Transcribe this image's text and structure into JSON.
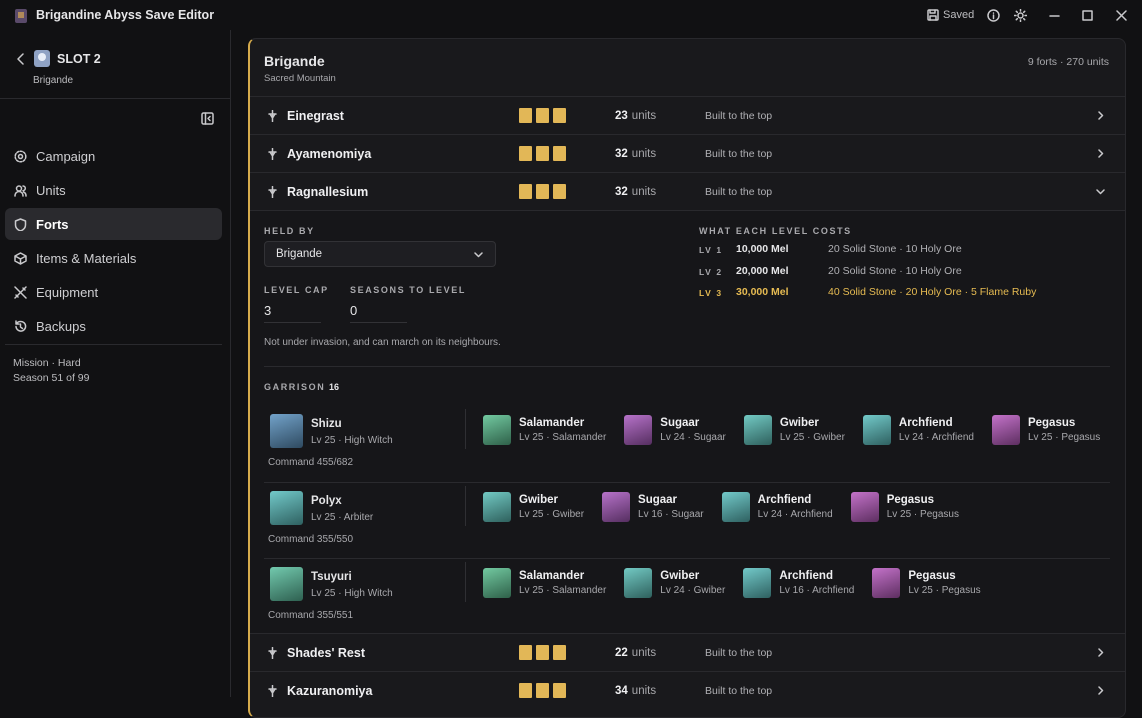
{
  "app": {
    "title": "Brigandine Abyss Save Editor",
    "save_status": "Saved"
  },
  "sidebar": {
    "slot": "SLOT 2",
    "ruler": "Brigande",
    "nav": [
      "Campaign",
      "Units",
      "Forts",
      "Items & Materials",
      "Equipment",
      "Backups"
    ],
    "footer": [
      "Mission · Hard",
      "Season 51 of 99"
    ]
  },
  "nation": {
    "name": "Brigande",
    "location": "Sacred Mountain",
    "summary": "9 forts · 270 units"
  },
  "forts": [
    {
      "name": "Einegrast",
      "level": 3,
      "units": 23,
      "units_label": "units",
      "status": "Built to the top"
    },
    {
      "name": "Ayamenomiya",
      "level": 3,
      "units": 32,
      "units_label": "units",
      "status": "Built to the top"
    },
    {
      "name": "Ragnallesium",
      "level": 3,
      "units": 32,
      "units_label": "units",
      "status": "Built to the top",
      "details": {
        "held_by_label": "HELD BY",
        "held_by": "Brigande",
        "level_cap_label": "LEVEL CAP",
        "level_cap": 3,
        "seasons_label": "SEASONS TO LEVEL",
        "seasons": 0,
        "note": "Not under invasion, and can march on its neighbours.",
        "costs_label": "WHAT EACH LEVEL COSTS",
        "costs": [
          {
            "level": "LV 1",
            "mel": "10,000 Mel",
            "materials": "20 Solid Stone · 10 Holy Ore"
          },
          {
            "level": "LV 2",
            "mel": "20,000 Mel",
            "materials": "20 Solid Stone · 10 Holy Ore"
          },
          {
            "level": "LV 3",
            "mel": "30,000 Mel",
            "materials": "40 Solid Stone · 20 Holy Ore · 5 Flame Ruby"
          }
        ],
        "garrison_label": "GARRISON",
        "garrison_count": 16,
        "groups": [
          {
            "leader": {
              "name": "Shizu",
              "info": "Lv 25 · High Witch"
            },
            "command": "Command 455/682",
            "monsters": [
              {
                "name": "Salamander",
                "info": "Lv 25 · Salamander"
              },
              {
                "name": "Sugaar",
                "info": "Lv 24 · Sugaar"
              },
              {
                "name": "Gwiber",
                "info": "Lv 25 · Gwiber"
              },
              {
                "name": "Archfiend",
                "info": "Lv 24 · Archfiend"
              },
              {
                "name": "Pegasus",
                "info": "Lv 25 · Pegasus"
              }
            ]
          },
          {
            "leader": {
              "name": "Polyx",
              "info": "Lv 25 · Arbiter"
            },
            "command": "Command 355/550",
            "monsters": [
              {
                "name": "Gwiber",
                "info": "Lv 25 · Gwiber"
              },
              {
                "name": "Sugaar",
                "info": "Lv 16 · Sugaar"
              },
              {
                "name": "Archfiend",
                "info": "Lv 24 · Archfiend"
              },
              {
                "name": "Pegasus",
                "info": "Lv 25 · Pegasus"
              }
            ]
          },
          {
            "leader": {
              "name": "Tsuyuri",
              "info": "Lv 25 · High Witch"
            },
            "command": "Command 355/551",
            "monsters": [
              {
                "name": "Salamander",
                "info": "Lv 25 · Salamander"
              },
              {
                "name": "Gwiber",
                "info": "Lv 24 · Gwiber"
              },
              {
                "name": "Archfiend",
                "info": "Lv 16 · Archfiend"
              },
              {
                "name": "Pegasus",
                "info": "Lv 25 · Pegasus"
              }
            ]
          }
        ]
      }
    },
    {
      "name": "Shades' Rest",
      "level": 3,
      "units": 22,
      "units_label": "units",
      "status": "Built to the top"
    },
    {
      "name": "Kazuranomiya",
      "level": 3,
      "units": 34,
      "units_label": "units",
      "status": "Built to the top"
    }
  ]
}
